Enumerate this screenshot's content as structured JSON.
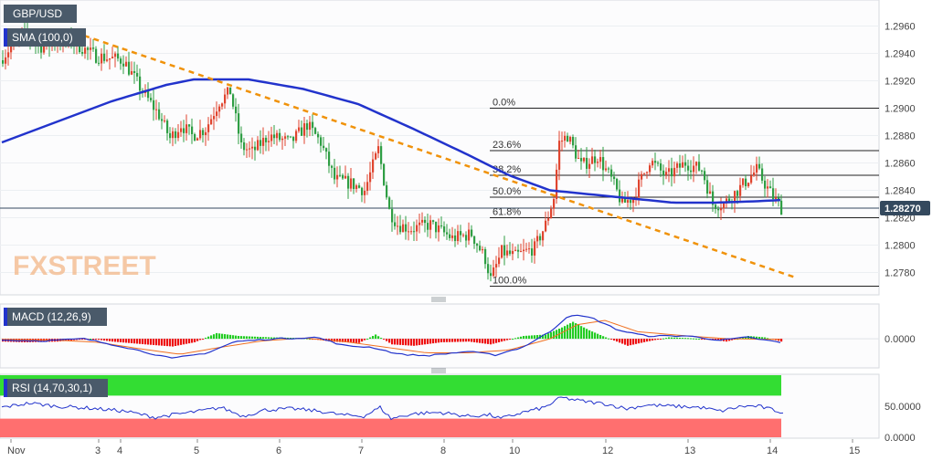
{
  "colors": {
    "bull": "#e0452f",
    "bear": "#2f9e44",
    "sma": "#2233cc",
    "trend": "#f0920a",
    "macd_line": "#2233cc",
    "signal_line": "#f07020",
    "hist_up": "#22cc22",
    "hist_down": "#ee1111",
    "rsi_line": "#2233cc",
    "rsi_overbought": "#33dd33",
    "rsi_oversold": "#ff6f6f"
  },
  "chart_data": [
    {
      "type": "candlestick",
      "title": "GBP/USD",
      "indicator": "SMA (100,0)",
      "watermark": "FXSTREET",
      "ylim": [
        1.2765,
        1.2975
      ],
      "price_ticks": [
        "1.2960",
        "1.2940",
        "1.2920",
        "1.2900",
        "1.2880",
        "1.2860",
        "1.2840",
        "1.2820",
        "1.2800",
        "1.2780"
      ],
      "current_price": "1.28270",
      "x_labels": [
        {
          "t": 0,
          "label": "Nov"
        },
        {
          "t": 32,
          "label": "3"
        },
        {
          "t": 40,
          "label": "4"
        },
        {
          "t": 68,
          "label": "5"
        },
        {
          "t": 98,
          "label": "6"
        },
        {
          "t": 128,
          "label": "7"
        },
        {
          "t": 158,
          "label": "8"
        },
        {
          "t": 183,
          "label": "10"
        },
        {
          "t": 217,
          "label": "12"
        },
        {
          "t": 247,
          "label": "13"
        },
        {
          "t": 277,
          "label": "14"
        },
        {
          "t": 307,
          "label": "15"
        }
      ],
      "candle_count": 285,
      "keypoints": [
        [
          0,
          1.2935
        ],
        [
          8,
          1.2955
        ],
        [
          15,
          1.2945
        ],
        [
          25,
          1.295
        ],
        [
          35,
          1.2938
        ],
        [
          45,
          1.2935
        ],
        [
          52,
          1.2912
        ],
        [
          58,
          1.2895
        ],
        [
          62,
          1.2878
        ],
        [
          66,
          1.2888
        ],
        [
          70,
          1.288
        ],
        [
          75,
          1.2885
        ],
        [
          80,
          1.2905
        ],
        [
          84,
          1.2912
        ],
        [
          88,
          1.2872
        ],
        [
          92,
          1.2868
        ],
        [
          98,
          1.288
        ],
        [
          106,
          1.2875
        ],
        [
          112,
          1.2888
        ],
        [
          117,
          1.2875
        ],
        [
          122,
          1.2848
        ],
        [
          128,
          1.2845
        ],
        [
          133,
          1.284
        ],
        [
          138,
          1.287
        ],
        [
          142,
          1.2825
        ],
        [
          145,
          1.2815
        ],
        [
          150,
          1.2812
        ],
        [
          157,
          1.2815
        ],
        [
          165,
          1.2805
        ],
        [
          172,
          1.2808
        ],
        [
          177,
          1.279
        ],
        [
          179,
          1.2775
        ],
        [
          183,
          1.2795
        ],
        [
          188,
          1.2792
        ],
        [
          195,
          1.2798
        ],
        [
          199,
          1.2815
        ],
        [
          202,
          1.2835
        ],
        [
          204,
          1.2875
        ],
        [
          207,
          1.288
        ],
        [
          212,
          1.2858
        ],
        [
          218,
          1.2865
        ],
        [
          223,
          1.2848
        ],
        [
          227,
          1.283
        ],
        [
          231,
          1.2835
        ],
        [
          237,
          1.2862
        ],
        [
          243,
          1.285
        ],
        [
          250,
          1.286
        ],
        [
          256,
          1.2855
        ],
        [
          260,
          1.283
        ],
        [
          264,
          1.283
        ],
        [
          270,
          1.2842
        ],
        [
          276,
          1.2855
        ],
        [
          281,
          1.2838
        ],
        [
          285,
          1.2827
        ]
      ],
      "fibonacci": [
        {
          "label": "0.0%",
          "price": 1.29
        },
        {
          "label": "23.6%",
          "price": 1.2869
        },
        {
          "label": "38.2%",
          "price": 1.2851
        },
        {
          "label": "50.0%",
          "price": 1.2835
        },
        {
          "label": "61.8%",
          "price": 1.282
        },
        {
          "label": "100.0%",
          "price": 1.277
        }
      ],
      "trendline": [
        [
          30,
          1.2953
        ],
        [
          290,
          1.2776
        ]
      ],
      "sma_points": [
        [
          0,
          1.2875
        ],
        [
          20,
          1.289
        ],
        [
          40,
          1.2905
        ],
        [
          60,
          1.2917
        ],
        [
          70,
          1.2921
        ],
        [
          90,
          1.2921
        ],
        [
          110,
          1.2914
        ],
        [
          130,
          1.2903
        ],
        [
          150,
          1.2885
        ],
        [
          170,
          1.2866
        ],
        [
          185,
          1.2851
        ],
        [
          200,
          1.284
        ],
        [
          215,
          1.2837
        ],
        [
          230,
          1.2834
        ],
        [
          245,
          1.2831
        ],
        [
          260,
          1.2831
        ],
        [
          275,
          1.2832
        ],
        [
          285,
          1.2833
        ]
      ]
    },
    {
      "type": "bar",
      "title": "MACD (12,26,9)",
      "ylim": [
        -0.004,
        0.0048
      ],
      "tick": "0.0000",
      "hist_keypoints": [
        [
          0,
          -0.0004
        ],
        [
          8,
          -0.0005
        ],
        [
          20,
          -0.0004
        ],
        [
          32,
          0.0
        ],
        [
          40,
          -0.0004
        ],
        [
          52,
          -0.0008
        ],
        [
          62,
          -0.0011
        ],
        [
          70,
          -0.0005
        ],
        [
          78,
          0.0008
        ],
        [
          86,
          0.0004
        ],
        [
          98,
          0.0002
        ],
        [
          110,
          0.0001
        ],
        [
          120,
          -0.0004
        ],
        [
          130,
          -0.0006
        ],
        [
          136,
          0.0006
        ],
        [
          142,
          -0.0008
        ],
        [
          150,
          -0.001
        ],
        [
          160,
          -0.0005
        ],
        [
          170,
          -0.0004
        ],
        [
          178,
          -0.0008
        ],
        [
          184,
          -0.0002
        ],
        [
          190,
          0.0004
        ],
        [
          198,
          0.0006
        ],
        [
          204,
          0.0016
        ],
        [
          208,
          0.0024
        ],
        [
          214,
          0.0012
        ],
        [
          220,
          0.0002
        ],
        [
          228,
          -0.001
        ],
        [
          235,
          -0.0004
        ],
        [
          243,
          0.0002
        ],
        [
          250,
          0.0001
        ],
        [
          258,
          -0.0001
        ],
        [
          264,
          -0.0004
        ],
        [
          272,
          0.0004
        ],
        [
          278,
          0.0002
        ],
        [
          285,
          -0.0005
        ]
      ],
      "macd_keypoints": [
        [
          0,
          -0.0002
        ],
        [
          15,
          -0.0003
        ],
        [
          30,
          0.0
        ],
        [
          45,
          -0.0012
        ],
        [
          62,
          -0.0028
        ],
        [
          75,
          -0.002
        ],
        [
          85,
          -0.0004
        ],
        [
          100,
          0.0
        ],
        [
          115,
          0.0002
        ],
        [
          125,
          -0.001
        ],
        [
          135,
          -0.0012
        ],
        [
          145,
          -0.0022
        ],
        [
          155,
          -0.0024
        ],
        [
          170,
          -0.0018
        ],
        [
          180,
          -0.0023
        ],
        [
          190,
          -0.0012
        ],
        [
          200,
          0.001
        ],
        [
          207,
          0.0034
        ],
        [
          215,
          0.003
        ],
        [
          225,
          0.0012
        ],
        [
          235,
          0.0004
        ],
        [
          250,
          0.0004
        ],
        [
          262,
          -0.0002
        ],
        [
          272,
          0.0002
        ],
        [
          285,
          -0.0006
        ]
      ],
      "signal_keypoints": [
        [
          0,
          -0.0001
        ],
        [
          20,
          -0.0002
        ],
        [
          35,
          -0.0005
        ],
        [
          50,
          -0.0014
        ],
        [
          65,
          -0.0022
        ],
        [
          80,
          -0.0012
        ],
        [
          95,
          -0.0003
        ],
        [
          110,
          0.0001
        ],
        [
          125,
          -0.0004
        ],
        [
          140,
          -0.0012
        ],
        [
          155,
          -0.002
        ],
        [
          170,
          -0.002
        ],
        [
          185,
          -0.0016
        ],
        [
          200,
          0.0
        ],
        [
          210,
          0.002
        ],
        [
          220,
          0.0026
        ],
        [
          232,
          0.001
        ],
        [
          250,
          0.0004
        ],
        [
          265,
          0.0
        ],
        [
          285,
          -0.0001
        ]
      ]
    },
    {
      "type": "line",
      "title": "RSI (14,70,30,1)",
      "ylim": [
        0,
        100
      ],
      "ticks": [
        "50.0000",
        "0.0000"
      ],
      "overbought": 70,
      "oversold": 30,
      "rsi_keypoints": [
        [
          0,
          48
        ],
        [
          10,
          55
        ],
        [
          20,
          50
        ],
        [
          32,
          47
        ],
        [
          45,
          42
        ],
        [
          56,
          32
        ],
        [
          62,
          36
        ],
        [
          72,
          42
        ],
        [
          80,
          48
        ],
        [
          88,
          34
        ],
        [
          96,
          44
        ],
        [
          106,
          46
        ],
        [
          116,
          42
        ],
        [
          124,
          36
        ],
        [
          132,
          34
        ],
        [
          138,
          48
        ],
        [
          142,
          30
        ],
        [
          150,
          38
        ],
        [
          160,
          40
        ],
        [
          170,
          34
        ],
        [
          178,
          36
        ],
        [
          182,
          30
        ],
        [
          190,
          40
        ],
        [
          198,
          48
        ],
        [
          204,
          64
        ],
        [
          212,
          58
        ],
        [
          220,
          54
        ],
        [
          228,
          46
        ],
        [
          235,
          52
        ],
        [
          245,
          50
        ],
        [
          255,
          48
        ],
        [
          262,
          42
        ],
        [
          270,
          50
        ],
        [
          276,
          50
        ],
        [
          285,
          40
        ]
      ]
    }
  ]
}
